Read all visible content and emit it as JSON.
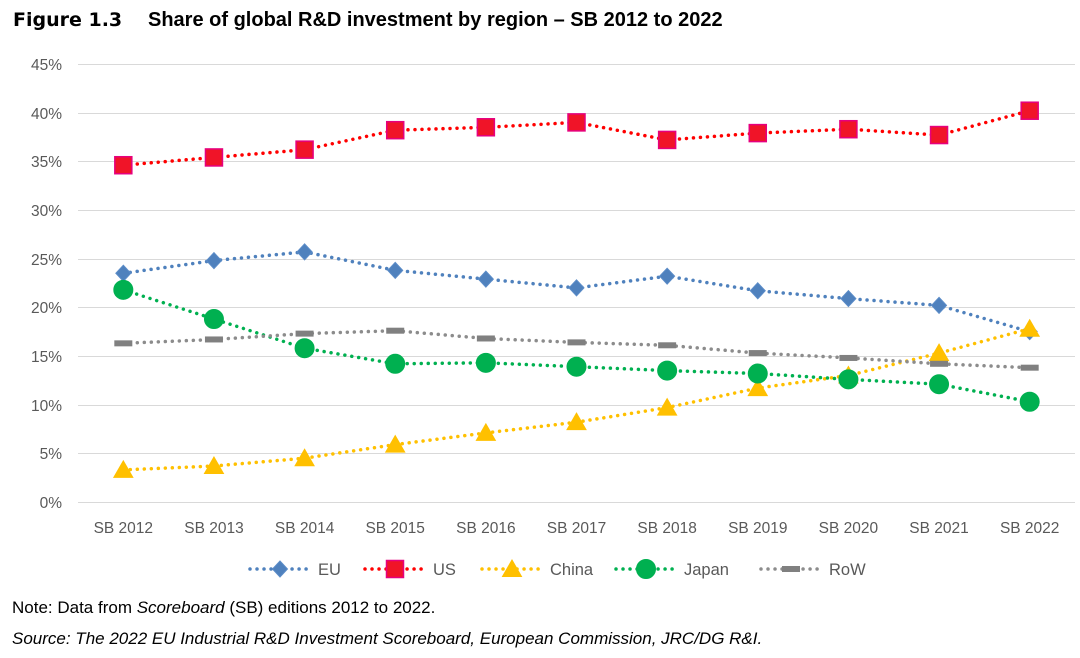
{
  "chart_data": {
    "type": "line",
    "figure_label": "Figure 1.3",
    "title": "Share of global R&D investment by region – SB 2012 to 2022",
    "xlabel": "",
    "ylabel": "",
    "categories": [
      "SB 2012",
      "SB 2013",
      "SB 2014",
      "SB 2015",
      "SB 2016",
      "SB 2017",
      "SB 2018",
      "SB 2019",
      "SB 2020",
      "SB 2021",
      "SB 2022"
    ],
    "ylim": [
      0,
      45
    ],
    "yticks": [
      0,
      5,
      10,
      15,
      20,
      25,
      30,
      35,
      40,
      45
    ],
    "ytick_labels": [
      "0%",
      "5%",
      "10%",
      "15%",
      "20%",
      "25%",
      "30%",
      "35%",
      "40%",
      "45%"
    ],
    "grid": "horizontal",
    "legend_position": "bottom",
    "series": [
      {
        "name": "EU",
        "values": [
          23.5,
          24.8,
          25.7,
          23.8,
          22.9,
          22.0,
          23.2,
          21.7,
          20.9,
          20.2,
          17.5
        ],
        "color": "#4F81BD",
        "marker": "diamond",
        "marker_fill": "#4F81BD",
        "marker_stroke": "#5B8CC8"
      },
      {
        "name": "US",
        "values": [
          34.6,
          35.4,
          36.2,
          38.2,
          38.5,
          39.0,
          37.2,
          37.9,
          38.3,
          37.7,
          40.2
        ],
        "color": "#FF0000",
        "marker": "square",
        "marker_fill": "#F01428",
        "marker_stroke": "#E6007E"
      },
      {
        "name": "China",
        "values": [
          3.3,
          3.7,
          4.5,
          5.9,
          7.1,
          8.2,
          9.7,
          11.7,
          13.0,
          15.3,
          17.8
        ],
        "color": "#FFC000",
        "marker": "triangle",
        "marker_fill": "#FFC000",
        "marker_stroke": "#FFC000"
      },
      {
        "name": "Japan",
        "values": [
          21.8,
          18.8,
          15.8,
          14.2,
          14.3,
          13.9,
          13.5,
          13.2,
          12.6,
          12.1,
          10.3
        ],
        "color": "#00B050",
        "marker": "circle",
        "marker_fill": "#00B050",
        "marker_stroke": "#00B050"
      },
      {
        "name": "RoW",
        "values": [
          16.3,
          16.7,
          17.3,
          17.6,
          16.8,
          16.4,
          16.1,
          15.3,
          14.8,
          14.2,
          13.8
        ],
        "color": "#8C8C8C",
        "marker": "dash",
        "marker_fill": "#808080",
        "marker_stroke": "#808080"
      }
    ]
  },
  "notes": {
    "note_prefix": "Note: Data from ",
    "note_italic": "Scoreboard",
    "note_suffix": " (SB) editions 2012 to 2022.",
    "source": "Source: The 2022 EU Industrial R&D Investment Scoreboard, European Commission, JRC/DG R&I."
  }
}
